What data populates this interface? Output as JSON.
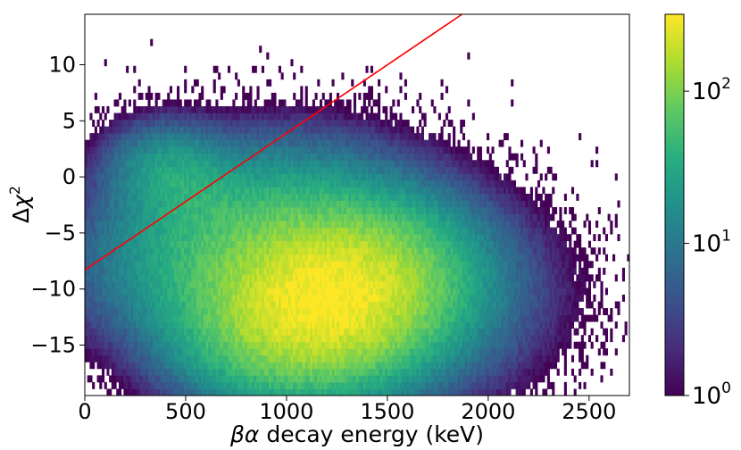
{
  "chart_data": {
    "type": "heatmap",
    "title": "",
    "xlabel_greek": "βα",
    "xlabel_rest": " decay energy (keV)",
    "ylabel_delta": "Δ",
    "ylabel_chi": "χ",
    "ylabel_exp": "2",
    "xlim": [
      0,
      2700
    ],
    "ylim": [
      -19.5,
      14.5
    ],
    "x_ticks": [
      {
        "value": 0,
        "label": "0"
      },
      {
        "value": 500,
        "label": "500"
      },
      {
        "value": 1000,
        "label": "1000"
      },
      {
        "value": 1500,
        "label": "1500"
      },
      {
        "value": 2000,
        "label": "2000"
      },
      {
        "value": 2500,
        "label": "2500"
      }
    ],
    "y_ticks": [
      {
        "value": 10,
        "label": "10"
      },
      {
        "value": 5,
        "label": "5"
      },
      {
        "value": 0,
        "label": "0"
      },
      {
        "value": -5,
        "label": "−5"
      },
      {
        "value": -10,
        "label": "−10"
      },
      {
        "value": -15,
        "label": "−15"
      }
    ],
    "colormap": "viridis",
    "colorbar": {
      "scale": "log",
      "min": 1,
      "max": 320,
      "ticks": [
        {
          "value": 1,
          "base": "10",
          "exp": "0"
        },
        {
          "value": 10,
          "base": "10",
          "exp": "1"
        },
        {
          "value": 100,
          "base": "10",
          "exp": "2"
        }
      ]
    },
    "clusters": [
      {
        "cx": 1200,
        "cy": -11,
        "sx": 300,
        "sy": 4,
        "rot": -0.35,
        "peak": 320
      },
      {
        "cx": 850,
        "cy": -6,
        "sx": 380,
        "sy": 4.5,
        "rot": -0.45,
        "peak": 60
      },
      {
        "cx": 450,
        "cy": 0,
        "sx": 170,
        "sy": 2.5,
        "rot": 0.2,
        "peak": 25
      },
      {
        "cx": 1550,
        "cy": -12,
        "sx": 400,
        "sy": 5,
        "rot": -0.3,
        "peak": 12
      }
    ],
    "overlay_line": {
      "color": "#ff0000",
      "points": [
        [
          0,
          -8.3
        ],
        [
          1870,
          14.5
        ]
      ]
    }
  }
}
